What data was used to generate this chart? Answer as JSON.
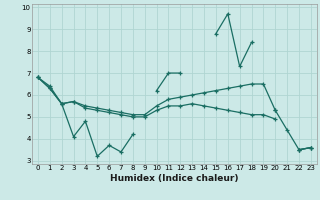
{
  "title": "",
  "xlabel": "Humidex (Indice chaleur)",
  "ylabel": "",
  "bg_color": "#cce9e7",
  "grid_color": "#b0d5d2",
  "line_color": "#1a6e63",
  "segs1": [
    {
      "x": [
        0,
        1,
        2,
        3,
        4,
        5,
        6,
        7,
        8
      ],
      "y": [
        6.8,
        6.4,
        5.6,
        4.1,
        4.8,
        3.2,
        3.7,
        3.4,
        4.2
      ]
    },
    {
      "x": [
        10,
        11,
        12
      ],
      "y": [
        6.2,
        7.0,
        7.0
      ]
    },
    {
      "x": [
        15,
        16,
        17,
        18
      ],
      "y": [
        8.8,
        9.7,
        7.3,
        8.4
      ]
    },
    {
      "x": [
        20,
        21,
        22,
        23
      ],
      "y": [
        5.3,
        4.4,
        3.5,
        3.6
      ]
    }
  ],
  "segs2": [
    {
      "x": [
        0,
        1,
        2,
        3,
        4,
        5,
        6,
        7,
        8,
        9,
        10,
        11,
        12,
        13,
        14,
        15,
        16,
        17,
        18,
        19,
        20
      ],
      "y": [
        6.8,
        6.3,
        5.6,
        5.7,
        5.5,
        5.4,
        5.3,
        5.2,
        5.1,
        5.1,
        5.5,
        5.8,
        5.9,
        6.0,
        6.1,
        6.2,
        6.3,
        6.4,
        6.5,
        6.5,
        5.3
      ]
    },
    {
      "x": [
        22,
        23
      ],
      "y": [
        3.5,
        3.6
      ]
    }
  ],
  "segs3": [
    {
      "x": [
        0,
        1,
        2,
        3,
        4,
        5,
        6,
        7,
        8,
        9,
        10,
        11,
        12,
        13,
        14,
        15,
        16,
        17,
        18,
        19,
        20
      ],
      "y": [
        6.8,
        6.3,
        5.6,
        5.7,
        5.4,
        5.3,
        5.2,
        5.1,
        5.0,
        5.0,
        5.3,
        5.5,
        5.5,
        5.6,
        5.5,
        5.4,
        5.3,
        5.2,
        5.1,
        5.1,
        4.9
      ]
    },
    {
      "x": [
        22,
        23
      ],
      "y": [
        3.5,
        3.6
      ]
    }
  ],
  "ylim": [
    2.85,
    10.15
  ],
  "xlim": [
    -0.5,
    23.5
  ],
  "yticks": [
    3,
    4,
    5,
    6,
    7,
    8,
    9,
    10
  ],
  "xticks": [
    0,
    1,
    2,
    3,
    4,
    5,
    6,
    7,
    8,
    9,
    10,
    11,
    12,
    13,
    14,
    15,
    16,
    17,
    18,
    19,
    20,
    21,
    22,
    23
  ],
  "tick_fontsize": 5.0,
  "xlabel_fontsize": 6.5
}
